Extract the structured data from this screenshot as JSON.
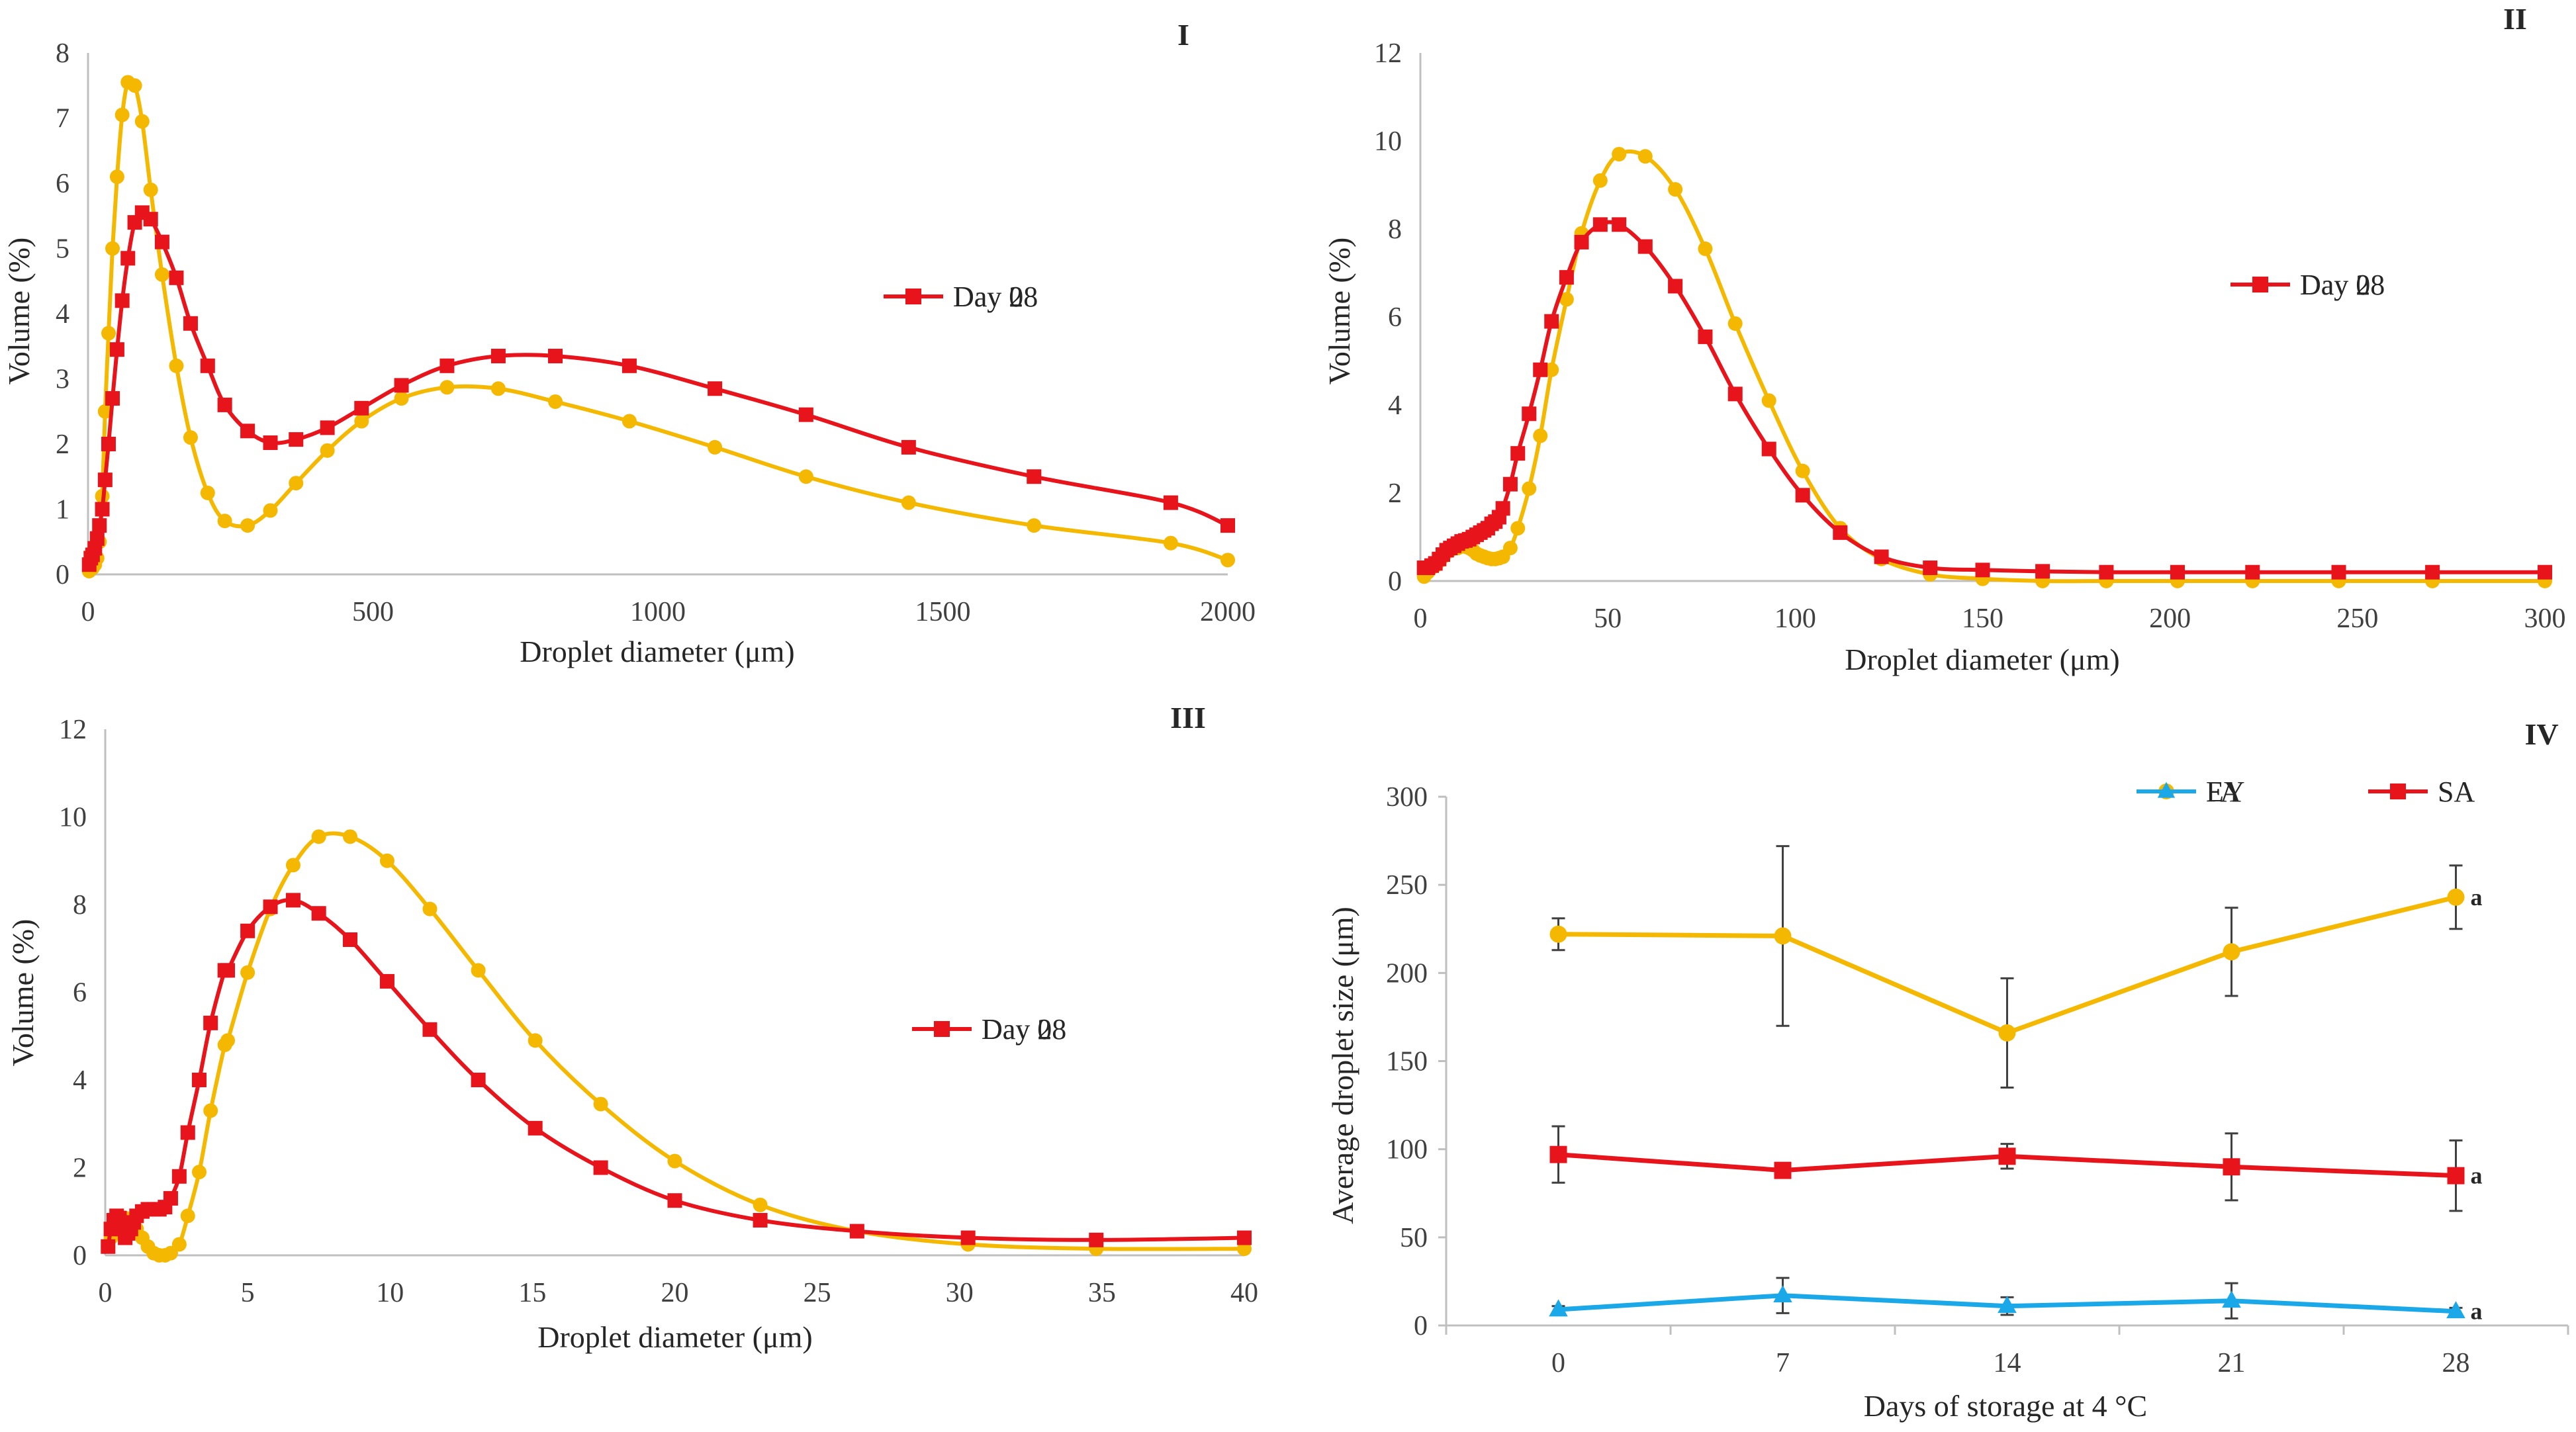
{
  "figure": {
    "colors": {
      "day0": "#F5B800",
      "day28": "#E8141C",
      "FA": "#F5B800",
      "SA": "#E8141C",
      "EY": "#1BA8E8",
      "axis": "#BFBFBF",
      "errorbar": "#404040"
    }
  },
  "chart_data": [
    {
      "type": "line",
      "panel_label": "I",
      "xlabel": "Droplet diameter (μm)",
      "ylabel": "Volume (%)",
      "xlim": [
        0,
        2000
      ],
      "ylim": [
        0,
        8
      ],
      "xticks": [
        "0",
        "500",
        "1000",
        "1500",
        "2000"
      ],
      "yticks": [
        "0",
        "1",
        "2",
        "3",
        "4",
        "5",
        "6",
        "7",
        "8"
      ],
      "legend": {
        "position": "center-right",
        "entries": [
          "Day 0",
          "Day 28"
        ]
      },
      "series": [
        {
          "name": "Day 0",
          "marker": "circle",
          "x": [
            2,
            5,
            8,
            12,
            16,
            20,
            25,
            30,
            36,
            43,
            51,
            60,
            70,
            82,
            95,
            110,
            130,
            155,
            180,
            210,
            240,
            280,
            320,
            365,
            420,
            480,
            550,
            630,
            720,
            820,
            950,
            1100,
            1260,
            1440,
            1660,
            1900,
            2000
          ],
          "y": [
            0.05,
            0.08,
            0.1,
            0.15,
            0.25,
            0.5,
            1.2,
            2.5,
            3.7,
            5.0,
            6.1,
            7.05,
            7.55,
            7.5,
            6.95,
            5.9,
            4.6,
            3.2,
            2.1,
            1.25,
            0.82,
            0.75,
            0.98,
            1.4,
            1.9,
            2.35,
            2.7,
            2.87,
            2.85,
            2.65,
            2.35,
            1.95,
            1.5,
            1.1,
            0.75,
            0.48,
            0.22
          ]
        },
        {
          "name": "Day 28",
          "marker": "square",
          "x": [
            2,
            5,
            8,
            12,
            16,
            20,
            25,
            30,
            36,
            43,
            51,
            60,
            70,
            82,
            95,
            110,
            130,
            155,
            180,
            210,
            240,
            280,
            320,
            365,
            420,
            480,
            550,
            630,
            720,
            820,
            950,
            1100,
            1260,
            1440,
            1660,
            1900,
            2000
          ],
          "y": [
            0.15,
            0.25,
            0.3,
            0.4,
            0.55,
            0.75,
            1.0,
            1.45,
            2.0,
            2.7,
            3.45,
            4.2,
            4.85,
            5.4,
            5.55,
            5.45,
            5.1,
            4.55,
            3.85,
            3.2,
            2.6,
            2.2,
            2.02,
            2.07,
            2.25,
            2.55,
            2.9,
            3.2,
            3.35,
            3.35,
            3.2,
            2.85,
            2.45,
            1.95,
            1.5,
            1.1,
            0.75
          ]
        }
      ]
    },
    {
      "type": "line",
      "panel_label": "II",
      "xlabel": "Droplet diameter (μm)",
      "ylabel": "Volume (%)",
      "xlim": [
        0,
        300
      ],
      "ylim": [
        0,
        12
      ],
      "xticks": [
        "0",
        "50",
        "100",
        "150",
        "200",
        "250",
        "300"
      ],
      "yticks": [
        "0",
        "2",
        "4",
        "6",
        "8",
        "10",
        "12"
      ],
      "legend": {
        "position": "center-right",
        "entries": [
          "Day 0",
          "Day 28"
        ]
      },
      "series": [
        {
          "name": "Day 0",
          "marker": "circle",
          "x": [
            1,
            2,
            3,
            4,
            5,
            6,
            7,
            8,
            9,
            10,
            11,
            12,
            13,
            14,
            15,
            16,
            17,
            18,
            19,
            20,
            21,
            22,
            24,
            26,
            29,
            32,
            35,
            39,
            43,
            48,
            53,
            60,
            68,
            76,
            84,
            93,
            102,
            112,
            123,
            136,
            150,
            166,
            183,
            202,
            222,
            245,
            270,
            300
          ],
          "y": [
            0.1,
            0.2,
            0.3,
            0.35,
            0.45,
            0.55,
            0.65,
            0.7,
            0.75,
            0.75,
            0.8,
            0.78,
            0.75,
            0.7,
            0.62,
            0.58,
            0.55,
            0.52,
            0.5,
            0.5,
            0.52,
            0.55,
            0.75,
            1.2,
            2.1,
            3.3,
            4.8,
            6.4,
            7.9,
            9.1,
            9.7,
            9.65,
            8.9,
            7.55,
            5.85,
            4.1,
            2.5,
            1.2,
            0.5,
            0.15,
            0.05,
            0.0,
            0.0,
            0.0,
            0.0,
            0.0,
            0.0,
            0.0
          ]
        },
        {
          "name": "Day 28",
          "marker": "square",
          "x": [
            1,
            2,
            3,
            4,
            5,
            6,
            7,
            8,
            9,
            10,
            11,
            12,
            13,
            14,
            15,
            16,
            17,
            18,
            19,
            20,
            21,
            22,
            24,
            26,
            29,
            32,
            35,
            39,
            43,
            48,
            53,
            60,
            68,
            76,
            84,
            93,
            102,
            112,
            123,
            136,
            150,
            166,
            183,
            202,
            222,
            245,
            270,
            300
          ],
          "y": [
            0.3,
            0.3,
            0.35,
            0.4,
            0.5,
            0.6,
            0.7,
            0.75,
            0.8,
            0.85,
            0.9,
            0.92,
            0.95,
            1.0,
            1.05,
            1.1,
            1.15,
            1.2,
            1.3,
            1.35,
            1.45,
            1.65,
            2.2,
            2.9,
            3.8,
            4.8,
            5.9,
            6.9,
            7.7,
            8.1,
            8.1,
            7.6,
            6.7,
            5.55,
            4.25,
            3.0,
            1.95,
            1.1,
            0.55,
            0.3,
            0.25,
            0.22,
            0.2,
            0.2,
            0.2,
            0.2,
            0.2,
            0.2
          ]
        }
      ]
    },
    {
      "type": "line",
      "panel_label": "III",
      "xlabel": "Droplet diameter (μm)",
      "ylabel": "Volume (%)",
      "xlim": [
        0,
        40
      ],
      "ylim": [
        0,
        12
      ],
      "xticks": [
        "0",
        "5",
        "10",
        "15",
        "20",
        "25",
        "30",
        "35",
        "40"
      ],
      "yticks": [
        "0",
        "2",
        "4",
        "6",
        "8",
        "10",
        "12"
      ],
      "legend": {
        "position": "center-right",
        "entries": [
          "Day 0",
          "Day 28"
        ]
      },
      "series": [
        {
          "name": "Day 0",
          "marker": "circle",
          "x": [
            0.1,
            0.2,
            0.3,
            0.4,
            0.5,
            0.6,
            0.7,
            0.8,
            0.9,
            1.0,
            1.1,
            1.3,
            1.5,
            1.7,
            1.9,
            2.1,
            2.3,
            2.6,
            2.9,
            3.3,
            3.7,
            4.2,
            4.3,
            5.0,
            5.8,
            6.6,
            7.5,
            8.6,
            9.9,
            11.4,
            13.1,
            15.1,
            17.4,
            20.0,
            23.0,
            26.4,
            30.3,
            34.8,
            40.0
          ],
          "y": [
            0.2,
            0.4,
            0.55,
            0.7,
            0.75,
            0.8,
            0.85,
            0.8,
            0.75,
            0.7,
            0.6,
            0.4,
            0.2,
            0.05,
            0.0,
            0.0,
            0.05,
            0.25,
            0.9,
            1.9,
            3.3,
            4.8,
            4.9,
            6.45,
            7.9,
            8.9,
            9.55,
            9.55,
            9.0,
            7.9,
            6.5,
            4.9,
            3.45,
            2.15,
            1.15,
            0.55,
            0.25,
            0.15,
            0.15
          ]
        },
        {
          "name": "Day 28",
          "marker": "square",
          "x": [
            0.1,
            0.2,
            0.3,
            0.4,
            0.5,
            0.6,
            0.7,
            0.8,
            0.9,
            1.0,
            1.1,
            1.3,
            1.5,
            1.7,
            1.9,
            2.1,
            2.3,
            2.6,
            2.9,
            3.3,
            3.7,
            4.2,
            4.3,
            5.0,
            5.8,
            6.6,
            7.5,
            8.6,
            9.9,
            11.4,
            13.1,
            15.1,
            17.4,
            20.0,
            23.0,
            26.4,
            30.3,
            34.8,
            40.0
          ],
          "y": [
            0.2,
            0.6,
            0.8,
            0.9,
            0.85,
            0.6,
            0.4,
            0.5,
            0.6,
            0.75,
            0.9,
            1.0,
            1.05,
            1.05,
            1.05,
            1.1,
            1.3,
            1.8,
            2.8,
            4.0,
            5.3,
            6.5,
            6.5,
            7.4,
            7.95,
            8.1,
            7.8,
            7.2,
            6.25,
            5.15,
            4.0,
            2.9,
            2.0,
            1.25,
            0.8,
            0.55,
            0.4,
            0.35,
            0.4
          ]
        }
      ]
    },
    {
      "type": "line",
      "panel_label": "IV",
      "xlabel": "Days of storage at 4 °C",
      "ylabel": "Average droplet size (μm)",
      "categories": [
        "0",
        "7",
        "14",
        "21",
        "28"
      ],
      "ylim": [
        0,
        300
      ],
      "yticks": [
        "0",
        "50",
        "100",
        "150",
        "200",
        "250",
        "300"
      ],
      "legend": {
        "position": "top-right",
        "entries": [
          "FA",
          "SA",
          "EY"
        ]
      },
      "series": [
        {
          "name": "FA",
          "marker": "circle",
          "values": [
            222,
            221,
            166,
            212,
            243
          ],
          "errors": [
            9,
            51,
            31,
            25,
            18
          ],
          "label_last": "a"
        },
        {
          "name": "SA",
          "marker": "square",
          "values": [
            97,
            88,
            96,
            90,
            85
          ],
          "errors": [
            16,
            2,
            7,
            19,
            20
          ],
          "label_last": "a"
        },
        {
          "name": "EY",
          "marker": "triangle",
          "values": [
            9,
            17,
            11,
            14,
            8
          ],
          "errors": [
            2,
            10,
            5,
            10,
            2
          ],
          "label_last": "a"
        }
      ]
    }
  ]
}
